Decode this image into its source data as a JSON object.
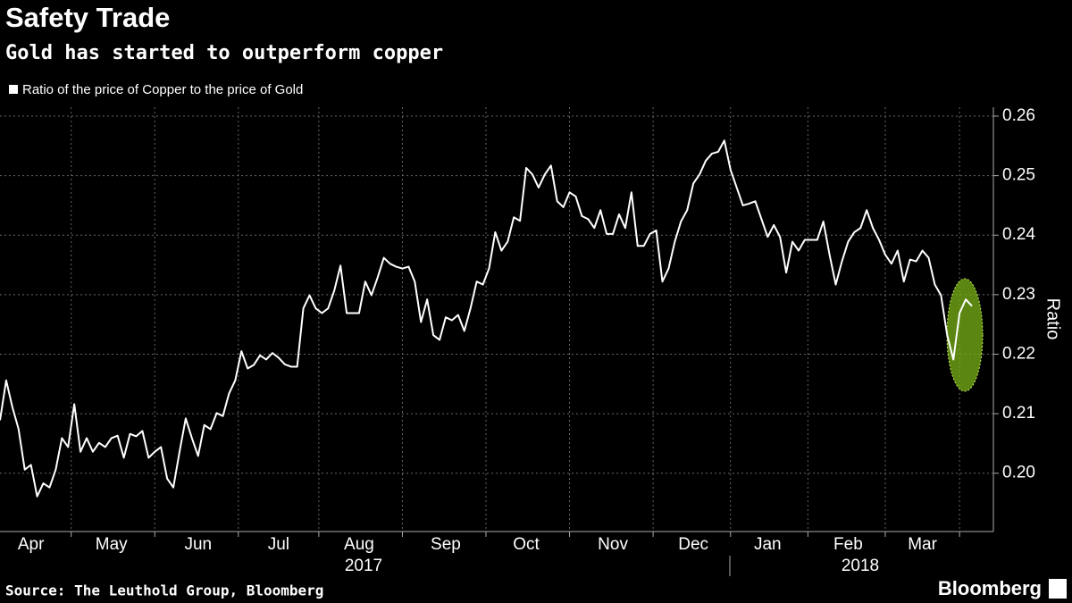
{
  "chart_data": {
    "type": "line",
    "title": "Safety Trade",
    "subtitle": "Gold has started to outperform copper",
    "source": "Source: The Leuthold Group, Bloomberg",
    "brand": "Bloomberg",
    "y_axis_label": "Ratio",
    "grid": true,
    "x_years": [
      "2017",
      "2018"
    ],
    "categories": [
      null,
      null,
      null,
      null,
      null,
      "Apr",
      null,
      null,
      null,
      null,
      null,
      null,
      null,
      null,
      null,
      null,
      null,
      null,
      "May",
      null,
      null,
      null,
      null,
      null,
      null,
      null,
      null,
      null,
      null,
      null,
      null,
      null,
      "Jun",
      null,
      null,
      null,
      null,
      null,
      null,
      null,
      null,
      null,
      null,
      null,
      null,
      "Jul",
      null,
      null,
      null,
      null,
      null,
      null,
      null,
      null,
      null,
      null,
      null,
      null,
      "Aug",
      null,
      null,
      null,
      null,
      null,
      null,
      null,
      null,
      null,
      null,
      null,
      null,
      null,
      "Sep",
      null,
      null,
      null,
      null,
      null,
      null,
      null,
      null,
      null,
      null,
      null,
      null,
      "Oct",
      null,
      null,
      null,
      null,
      null,
      null,
      null,
      null,
      null,
      null,
      null,
      null,
      null,
      "Nov",
      null,
      null,
      null,
      null,
      null,
      null,
      null,
      null,
      null,
      null,
      null,
      null,
      "Dec",
      null,
      null,
      null,
      null,
      null,
      null,
      null,
      null,
      null,
      null,
      null,
      "Jan",
      null,
      null,
      null,
      null,
      null,
      null,
      null,
      null,
      null,
      null,
      null,
      null,
      "Feb",
      null,
      null,
      null,
      null,
      null,
      null,
      null,
      null,
      null,
      null,
      null,
      "Mar",
      null,
      null,
      null,
      null,
      null,
      null,
      null,
      null
    ],
    "series": [
      {
        "name": "Ratio of the price of Copper to the price of Gold",
        "color": "#ffffff",
        "values": [
          0.2089,
          0.2156,
          0.2111,
          0.2074,
          0.2006,
          0.2014,
          0.1961,
          0.1983,
          0.1976,
          0.2006,
          0.2059,
          0.2044,
          0.2116,
          0.2036,
          0.2059,
          0.2036,
          0.2051,
          0.2044,
          0.2059,
          0.2063,
          0.2026,
          0.2066,
          0.2062,
          0.2071,
          0.2026,
          0.2036,
          0.2044,
          0.1991,
          0.1976,
          0.2036,
          0.2092,
          0.2059,
          0.2029,
          0.2081,
          0.2074,
          0.2101,
          0.2096,
          0.2134,
          0.2156,
          0.2205,
          0.2176,
          0.2182,
          0.2198,
          0.2191,
          0.2202,
          0.2194,
          0.2183,
          0.2179,
          0.2179,
          0.2277,
          0.2299,
          0.2277,
          0.2269,
          0.2277,
          0.2307,
          0.2349,
          0.2269,
          0.2269,
          0.2269,
          0.2322,
          0.2299,
          0.2329,
          0.2362,
          0.2352,
          0.2347,
          0.2344,
          0.2347,
          0.2322,
          0.2254,
          0.2292,
          0.2232,
          0.2224,
          0.2262,
          0.2257,
          0.2266,
          0.2239,
          0.2277,
          0.2322,
          0.2317,
          0.2344,
          0.2405,
          0.2374,
          0.2389,
          0.243,
          0.2424,
          0.2513,
          0.2502,
          0.248,
          0.2502,
          0.2517,
          0.2457,
          0.2447,
          0.2472,
          0.2465,
          0.2432,
          0.2427,
          0.2412,
          0.2442,
          0.2402,
          0.2402,
          0.2435,
          0.2412,
          0.2472,
          0.2382,
          0.2382,
          0.2402,
          0.2408,
          0.2322,
          0.2344,
          0.2389,
          0.2423,
          0.2442,
          0.2487,
          0.2502,
          0.2525,
          0.2537,
          0.254,
          0.2559,
          0.251,
          0.248,
          0.245,
          0.2453,
          0.2457,
          0.2427,
          0.2397,
          0.2417,
          0.2397,
          0.2337,
          0.2389,
          0.2374,
          0.2392,
          0.2392,
          0.2392,
          0.2423,
          0.2367,
          0.2317,
          0.2356,
          0.2389,
          0.2405,
          0.2412,
          0.2442,
          0.2412,
          0.2392,
          0.2367,
          0.2352,
          0.2374,
          0.2322,
          0.2359,
          0.2356,
          0.2374,
          0.2362,
          0.2317,
          0.2299,
          0.2232,
          0.2191,
          0.2269,
          0.2292,
          0.2281
        ]
      }
    ],
    "ylim": [
      0.1902,
      0.2615
    ],
    "yticks": [
      {
        "value": 0.2,
        "label": "0.20"
      },
      0.21,
      0.22,
      0.23,
      0.24,
      0.25,
      0.26
    ]
  }
}
